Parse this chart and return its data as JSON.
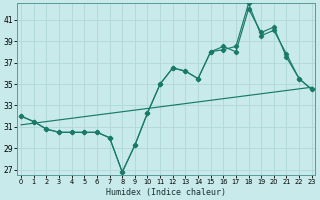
{
  "xlabel": "Humidex (Indice chaleur)",
  "bg_color": "#c8eaea",
  "grid_color": "#b0d8d8",
  "line_color": "#1a7a6a",
  "x_ticks": [
    0,
    1,
    2,
    3,
    4,
    5,
    6,
    7,
    8,
    9,
    10,
    11,
    12,
    13,
    14,
    15,
    16,
    17,
    18,
    19,
    20,
    21,
    22,
    23
  ],
  "y_ticks": [
    27,
    29,
    31,
    33,
    35,
    37,
    39,
    41
  ],
  "xlim": [
    -0.3,
    23.3
  ],
  "ylim": [
    26.5,
    42.5
  ],
  "series1": [
    32.0,
    31.5,
    30.8,
    30.5,
    30.5,
    30.5,
    30.5,
    30.0,
    26.8,
    29.3,
    32.3,
    35.0,
    36.5,
    36.2,
    35.5,
    38.0,
    38.2,
    38.5,
    42.5,
    39.5,
    40.0,
    37.8,
    35.5,
    34.5
  ],
  "series2": [
    32.0,
    31.5,
    30.8,
    30.5,
    30.5,
    30.5,
    30.5,
    30.0,
    26.8,
    29.3,
    32.3,
    35.0,
    36.5,
    36.2,
    35.5,
    38.0,
    38.5,
    38.0,
    42.0,
    39.8,
    40.3,
    37.5,
    35.5,
    34.5
  ],
  "trend_x": [
    0,
    23
  ],
  "trend_y": [
    31.2,
    34.7
  ]
}
